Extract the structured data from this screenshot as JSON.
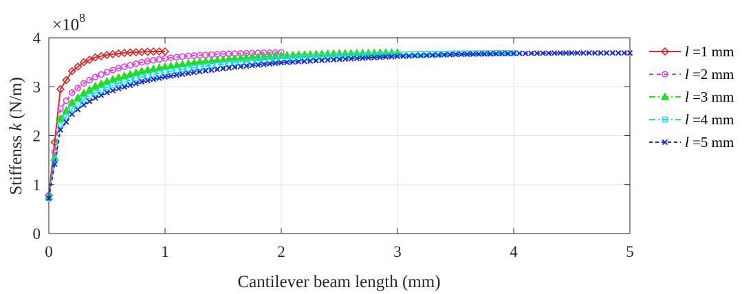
{
  "chart_data": {
    "type": "line",
    "title": "",
    "xlabel": "Cantilever beam length (mm)",
    "ylabel_parts": {
      "pre": "Stiffenss ",
      "var": "k",
      "post": " (N/m)"
    },
    "y_exponent": {
      "base": "×10",
      "power": "8"
    },
    "xlim": [
      0,
      5
    ],
    "ylim": [
      0,
      4
    ],
    "y_scale": 100000000,
    "x_ticks": [
      "0",
      "1",
      "2",
      "3",
      "4",
      "5"
    ],
    "y_ticks": [
      "0",
      "1",
      "2",
      "3",
      "4"
    ],
    "grid": true,
    "legend_position": "outside-right",
    "series": [
      {
        "name_var": "l",
        "name_rest": " =1 mm",
        "l": 1,
        "color": "#d42a2a",
        "marker": "diamond",
        "dash": "solid",
        "x": [
          0,
          0.1,
          0.2,
          0.3,
          0.4,
          0.5,
          0.6,
          0.7,
          0.8,
          0.9,
          1.0
        ],
        "y": [
          0.78,
          2.95,
          3.32,
          3.5,
          3.6,
          3.65,
          3.68,
          3.7,
          3.71,
          3.72,
          3.72
        ]
      },
      {
        "name_var": "l",
        "name_rest": " =2 mm",
        "l": 2,
        "color": "#e040e0",
        "marker": "circle",
        "dash": "6,5",
        "x": [
          0,
          0.1,
          0.2,
          0.3,
          0.4,
          0.5,
          0.6,
          0.8,
          1.0,
          1.2,
          1.5,
          1.8,
          2.0
        ],
        "y": [
          0.78,
          2.55,
          2.88,
          3.07,
          3.2,
          3.3,
          3.38,
          3.5,
          3.58,
          3.63,
          3.67,
          3.69,
          3.7
        ]
      },
      {
        "name_var": "l",
        "name_rest": " =3 mm",
        "l": 3,
        "color": "#22dd22",
        "marker": "triangle",
        "dash": "9,4,2,4",
        "x": [
          0,
          0.1,
          0.2,
          0.3,
          0.4,
          0.5,
          0.6,
          0.8,
          1.0,
          1.3,
          1.6,
          2.0,
          2.5,
          3.0
        ],
        "y": [
          0.76,
          2.35,
          2.68,
          2.87,
          3.01,
          3.11,
          3.19,
          3.32,
          3.41,
          3.51,
          3.58,
          3.64,
          3.68,
          3.7
        ]
      },
      {
        "name_var": "l",
        "name_rest": " =4 mm",
        "l": 4,
        "color": "#22d8ee",
        "marker": "square",
        "dash": "9,4,2,4",
        "x": [
          0,
          0.1,
          0.2,
          0.3,
          0.4,
          0.5,
          0.6,
          0.8,
          1.0,
          1.3,
          1.6,
          2.0,
          2.5,
          3.0,
          3.5,
          4.0
        ],
        "y": [
          0.74,
          2.23,
          2.55,
          2.74,
          2.88,
          2.99,
          3.07,
          3.2,
          3.3,
          3.41,
          3.49,
          3.57,
          3.63,
          3.66,
          3.68,
          3.69
        ]
      },
      {
        "name_var": "l",
        "name_rest": " =5 mm",
        "l": 5,
        "color": "#1f2fc8",
        "marker": "x",
        "dash": "5,4",
        "x": [
          0,
          0.1,
          0.2,
          0.3,
          0.4,
          0.5,
          0.6,
          0.8,
          1.0,
          1.3,
          1.6,
          2.0,
          2.5,
          3.0,
          3.5,
          4.0,
          4.5,
          5.0
        ],
        "y": [
          0.72,
          2.12,
          2.44,
          2.63,
          2.77,
          2.88,
          2.96,
          3.1,
          3.2,
          3.31,
          3.4,
          3.49,
          3.56,
          3.62,
          3.66,
          3.68,
          3.69,
          3.69
        ]
      }
    ]
  }
}
